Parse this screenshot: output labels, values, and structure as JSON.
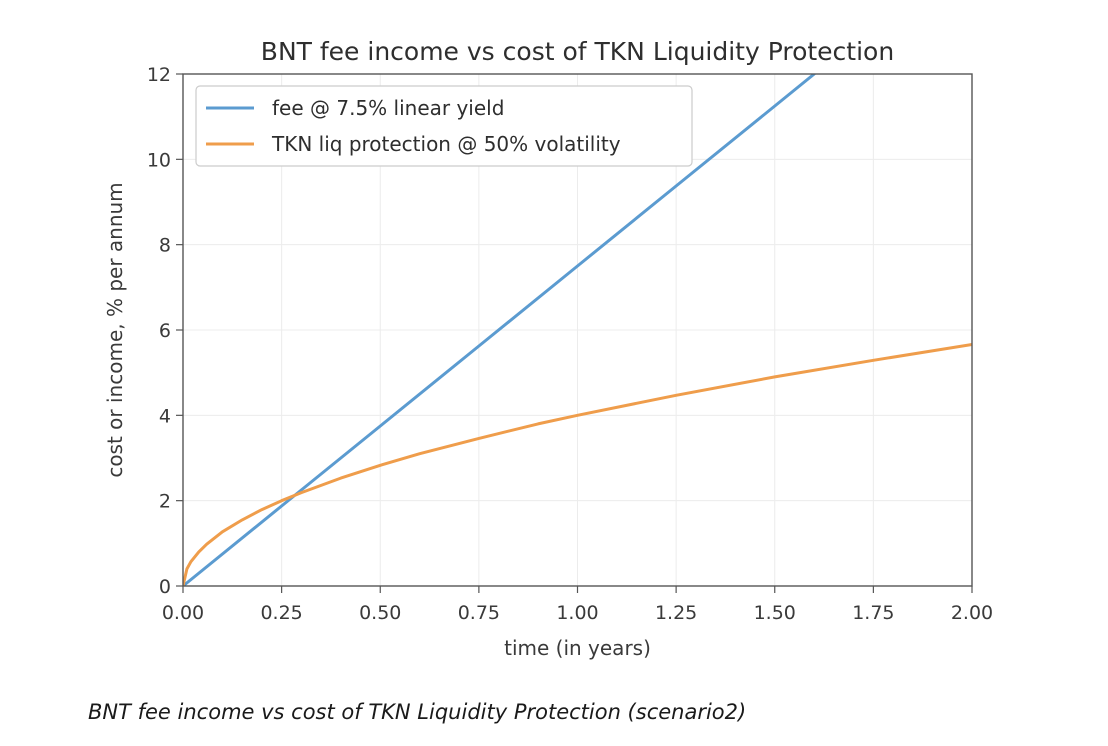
{
  "chart_data": {
    "type": "line",
    "title": "BNT fee income vs cost of TKN Liquidity Protection",
    "xlabel": "time (in years)",
    "ylabel": "cost or income, % per annum",
    "xlim": [
      0,
      2
    ],
    "ylim": [
      0,
      12
    ],
    "xticks": [
      "0.00",
      "0.25",
      "0.50",
      "0.75",
      "1.00",
      "1.25",
      "1.50",
      "1.75",
      "2.00"
    ],
    "yticks": [
      "0",
      "2",
      "4",
      "6",
      "8",
      "10",
      "12"
    ],
    "grid": true,
    "legend_position": "top-left",
    "series": [
      {
        "name": "fee @ 7.5% linear yield",
        "color": "#5b9bd0",
        "x": [
          0,
          0.25,
          0.5,
          0.75,
          1.0,
          1.25,
          1.5,
          1.6
        ],
        "y": [
          0,
          1.875,
          3.75,
          5.625,
          7.5,
          9.375,
          11.25,
          12.0
        ]
      },
      {
        "name": "TKN liq protection @ 50% volatility",
        "color": "#ef9d4b",
        "x": [
          0,
          0.01,
          0.02,
          0.04,
          0.06,
          0.1,
          0.15,
          0.2,
          0.25,
          0.3,
          0.4,
          0.5,
          0.6,
          0.75,
          0.9,
          1.0,
          1.25,
          1.5,
          1.75,
          2.0
        ],
        "y": [
          0,
          0.4,
          0.57,
          0.8,
          0.98,
          1.27,
          1.55,
          1.79,
          2.0,
          2.19,
          2.53,
          2.83,
          3.1,
          3.46,
          3.8,
          4.0,
          4.47,
          4.9,
          5.29,
          5.66
        ]
      }
    ]
  },
  "caption": "BNT fee income vs cost of TKN Liquidity Protection (scenario2)"
}
